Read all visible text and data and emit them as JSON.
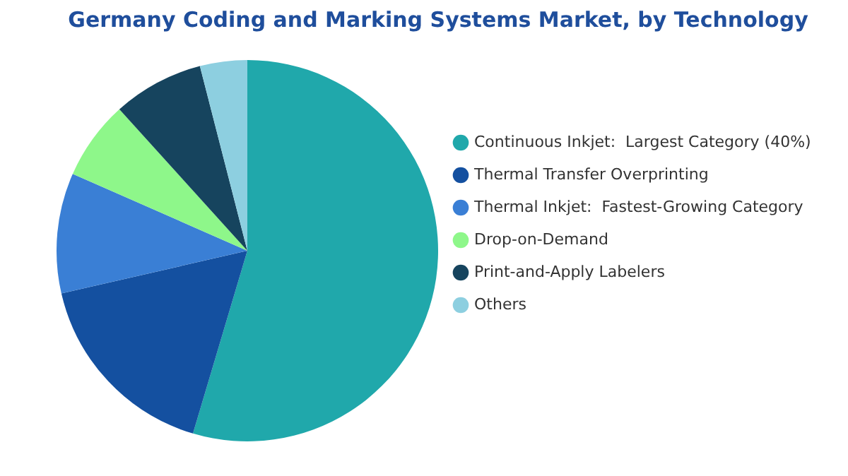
{
  "chart_data": {
    "type": "pie",
    "title": "Germany Coding and Marking Systems Market, by Technology",
    "categories": [
      "Continuous Inkjet:  Largest Category (40%)",
      "Thermal Transfer Overprinting",
      "Thermal Inkjet:  Fastest-Growing Category",
      "Drop-on-Demand",
      "Print-and-Apply Labelers",
      "Others"
    ],
    "values": [
      54.6,
      16.8,
      10.2,
      6.7,
      7.7,
      4.0
    ],
    "colors": [
      "#20a8ab",
      "#1450a0",
      "#3a7fd5",
      "#8ef78a",
      "#16445e",
      "#8dcfe0"
    ],
    "legend": "right"
  }
}
